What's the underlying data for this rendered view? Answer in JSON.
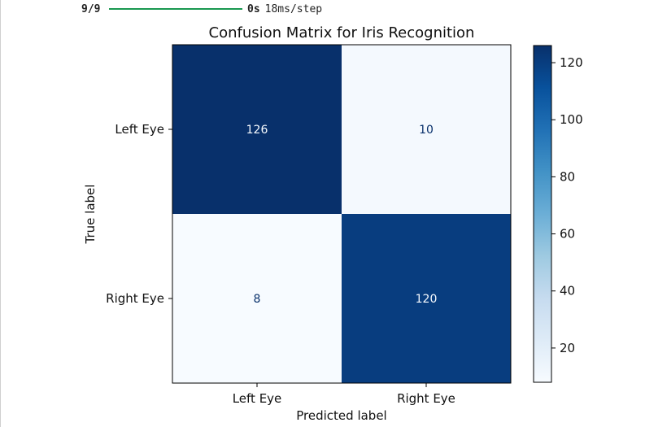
{
  "progress": {
    "count_label": "9/9",
    "fraction": 1.0,
    "time_label": "0s",
    "step_label": "18ms/step",
    "bar_color": "#1a9850"
  },
  "chart_data": {
    "type": "heatmap",
    "title": "Confusion Matrix for Iris Recognition",
    "xlabel": "Predicted label",
    "ylabel": "True label",
    "x_categories": [
      "Left Eye",
      "Right Eye"
    ],
    "y_categories": [
      "Left Eye",
      "Right Eye"
    ],
    "values": [
      [
        126,
        10
      ],
      [
        8,
        120
      ]
    ],
    "colormap": "Blues",
    "color_range": [
      8,
      126
    ],
    "colorbar_ticks": [
      20,
      40,
      60,
      80,
      100,
      120
    ],
    "colorbar_tick_labels": [
      "20",
      "40",
      "60",
      "80",
      "100",
      "120"
    ],
    "cell_labels": [
      [
        "126",
        "10"
      ],
      [
        "8",
        "120"
      ]
    ],
    "grid": false,
    "colorbar": "right"
  }
}
